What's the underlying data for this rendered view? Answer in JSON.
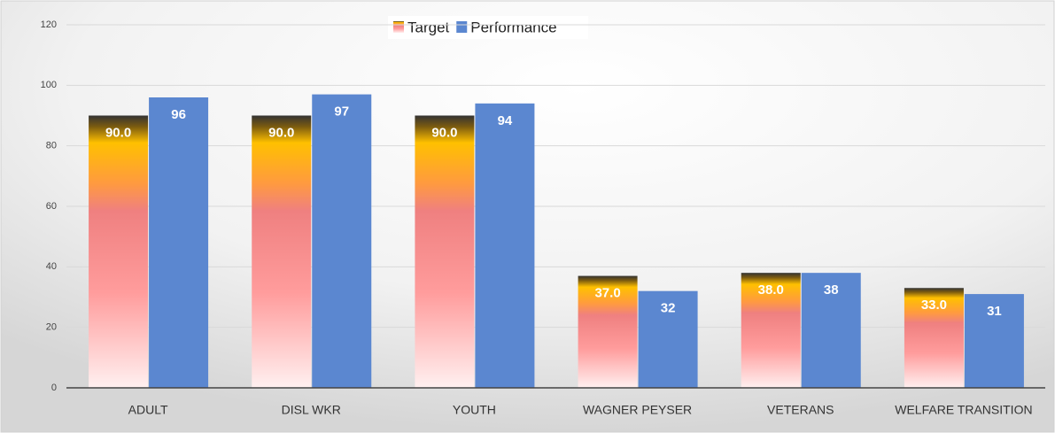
{
  "chart_data": {
    "type": "bar",
    "categories": [
      "ADULT",
      "DISL WKR",
      "YOUTH",
      "WAGNER PEYSER",
      "VETERANS",
      "WELFARE TRANSITION"
    ],
    "series": [
      {
        "name": "Target",
        "values": [
          90,
          90,
          90,
          37,
          38,
          33
        ],
        "value_labels": [
          "90.0",
          "90.0",
          "90.0",
          "37.0",
          "38.0",
          "33.0"
        ]
      },
      {
        "name": "Performance",
        "color": "#5b87d0",
        "values": [
          96,
          97,
          94,
          32,
          38,
          31
        ]
      }
    ],
    "ylim": [
      0,
      120
    ],
    "yticks": [
      0,
      20,
      40,
      60,
      80,
      100,
      120
    ],
    "grid": true,
    "legend": "top"
  }
}
